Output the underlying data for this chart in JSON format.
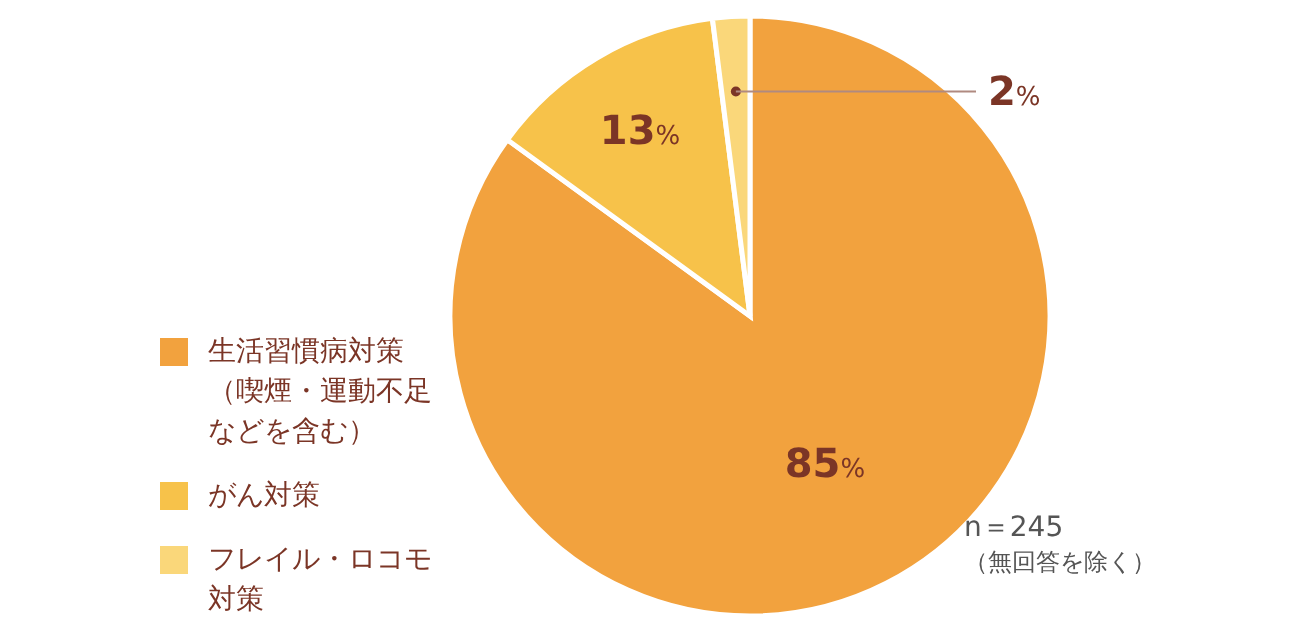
{
  "chart_data": {
    "type": "pie",
    "categories": [
      "生活習慣病対策（喫煙・運動不足などを含む）",
      "がん対策",
      "フレイル・ロコモ対策"
    ],
    "values": [
      85,
      13,
      2
    ],
    "value_labels": [
      "85%",
      "13%",
      "2%"
    ],
    "colors": [
      "#f2a23e",
      "#f7c24a",
      "#fad77a"
    ],
    "legend": "left",
    "annotations": [
      "n＝245",
      "（無回答を除く）"
    ]
  }
}
